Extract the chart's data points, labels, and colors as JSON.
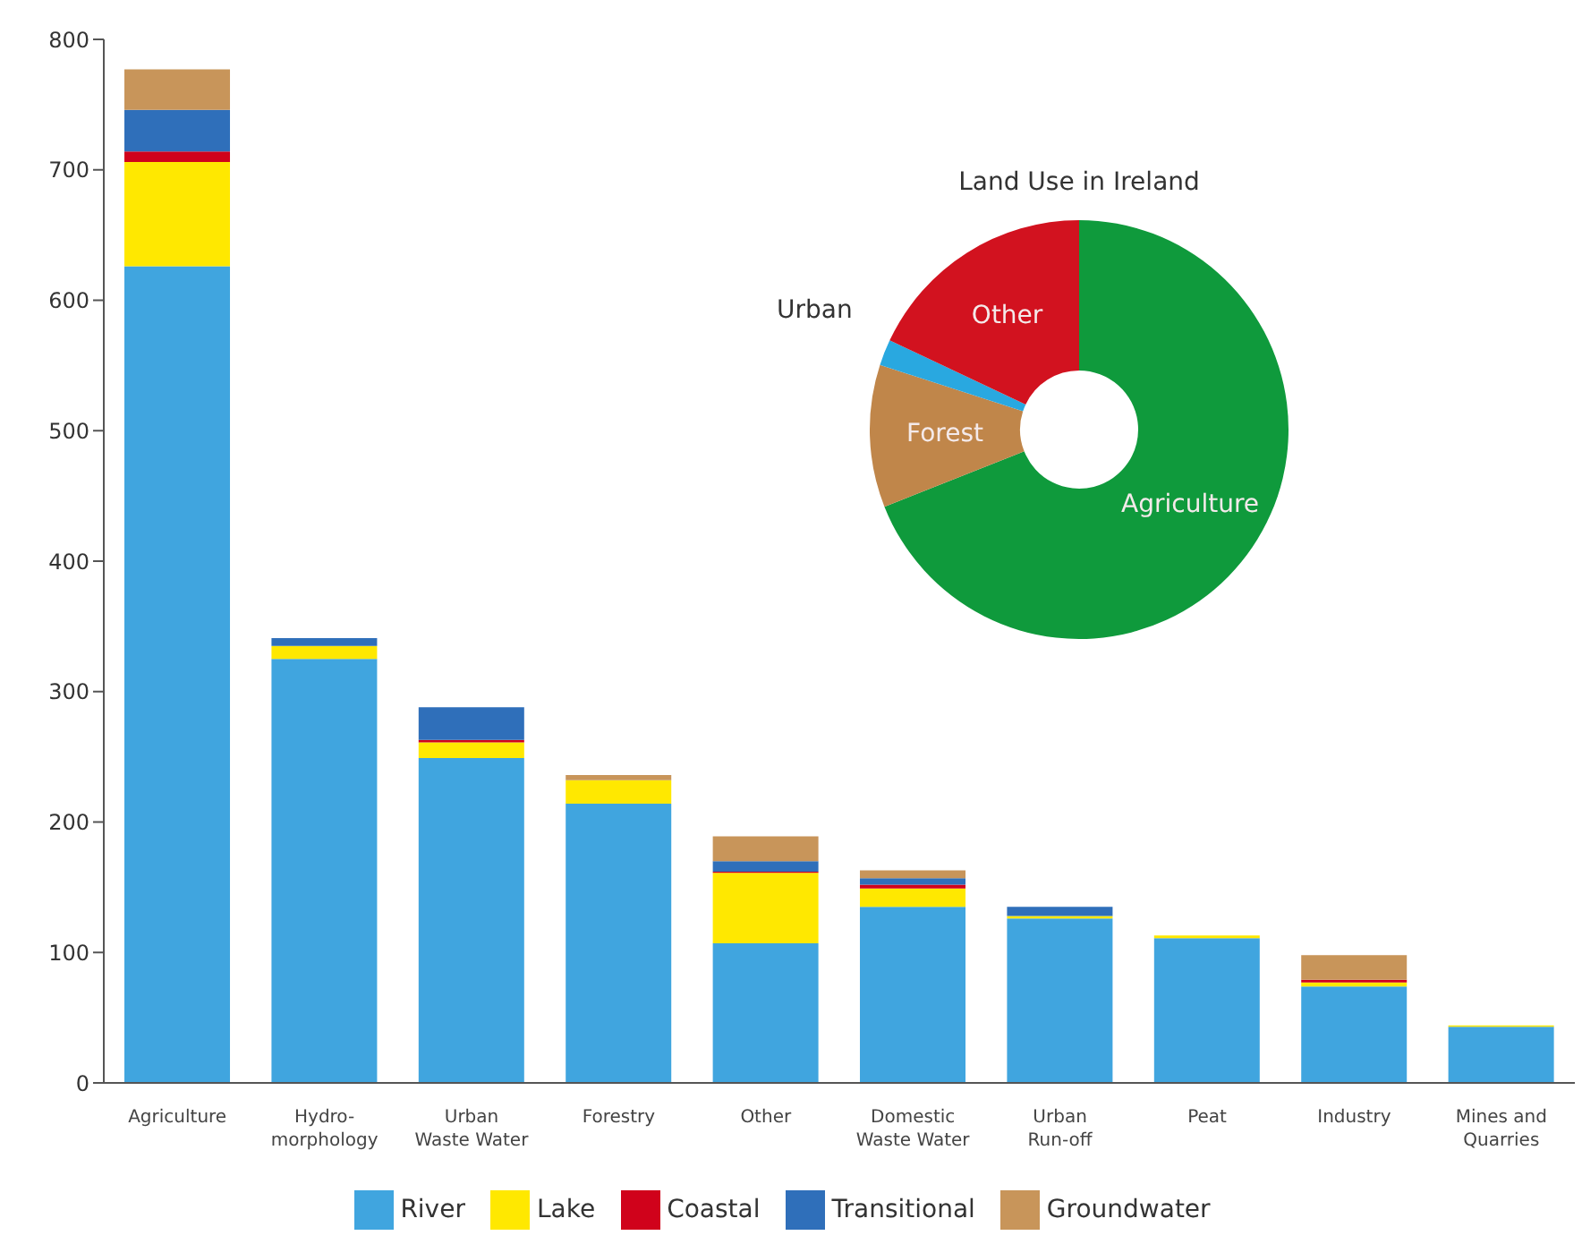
{
  "chart_data": [
    {
      "type": "bar",
      "stacked": true,
      "categories": [
        "Agriculture",
        "Hydro-\nmorphology",
        "Urban\nWaste Water",
        "Forestry",
        "Other",
        "Domestic\nWaste Water",
        "Urban\nRun-off",
        "Peat",
        "Industry",
        "Mines and\nQuarries"
      ],
      "series": [
        {
          "name": "River",
          "color": "#40a5df",
          "values": [
            626,
            325,
            249,
            214,
            107,
            135,
            126,
            111,
            74,
            43
          ]
        },
        {
          "name": "Lake",
          "color": "#ffe800",
          "values": [
            80,
            10,
            12,
            18,
            54,
            14,
            2,
            2,
            3,
            1
          ]
        },
        {
          "name": "Coastal",
          "color": "#d0021b",
          "values": [
            8,
            0,
            2,
            0,
            1,
            3,
            0,
            0,
            2,
            0
          ]
        },
        {
          "name": "Transitional",
          "color": "#2f6fba",
          "values": [
            32,
            6,
            25,
            0,
            8,
            5,
            7,
            0,
            0,
            0
          ]
        },
        {
          "name": "Groundwater",
          "color": "#c8955a",
          "values": [
            31,
            0,
            0,
            4,
            19,
            6,
            0,
            0,
            19,
            0
          ]
        }
      ],
      "ylim": [
        0,
        800
      ],
      "yticks": [
        0,
        100,
        200,
        300,
        400,
        500,
        600,
        700,
        800
      ],
      "grid": false,
      "legend": "bottom"
    },
    {
      "type": "donut",
      "title": "Land Use in Ireland",
      "categories": [
        "Agriculture",
        "Forest",
        "Urban",
        "Other"
      ],
      "values": [
        69,
        11,
        2,
        18
      ],
      "colors": [
        "#0f9a3c",
        "#c0864a",
        "#29a8e0",
        "#d2121f"
      ],
      "legend": false
    }
  ]
}
